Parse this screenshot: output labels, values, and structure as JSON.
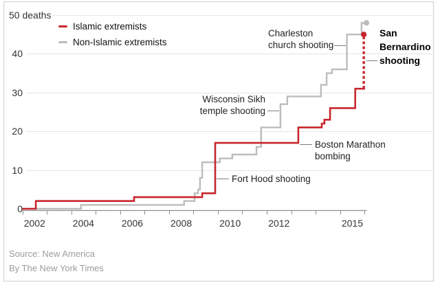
{
  "chart_data": {
    "type": "line",
    "subtype": "cumulative-step",
    "title": "",
    "y_axis": {
      "unit_label": "50 deaths",
      "ticks": [
        0,
        10,
        20,
        30,
        40
      ],
      "top_tick": 50,
      "range": [
        0,
        50
      ],
      "grid": true
    },
    "x_axis": {
      "labels": [
        "2002",
        "2004",
        "2006",
        "2008",
        "2010",
        "2012",
        "2015"
      ],
      "label_years": [
        2002,
        2004,
        2006,
        2008,
        2010,
        2012,
        2015
      ],
      "tick_years_start": 2002,
      "tick_count": 15,
      "range": [
        2002,
        2016.1
      ]
    },
    "series": [
      {
        "name": "Non-Islamic extremists",
        "color": "#bcbcbc",
        "points": [
          [
            2002.0,
            0
          ],
          [
            2004.4,
            1
          ],
          [
            2008.62,
            2
          ],
          [
            2009.05,
            4
          ],
          [
            2009.19,
            5
          ],
          [
            2009.27,
            8
          ],
          [
            2009.36,
            12
          ],
          [
            2010.08,
            13
          ],
          [
            2010.59,
            14
          ],
          [
            2011.58,
            16
          ],
          [
            2011.77,
            21
          ],
          [
            2012.56,
            27
          ],
          [
            2012.84,
            29
          ],
          [
            2014.22,
            32
          ],
          [
            2014.45,
            35
          ],
          [
            2014.67,
            36
          ],
          [
            2015.28,
            45
          ],
          [
            2015.88,
            48
          ]
        ],
        "solid_end_year": 2016.08,
        "end_dot": {
          "year": 2016.08,
          "value": 48
        }
      },
      {
        "name": "Islamic extremists",
        "color": "#c7262c",
        "points": [
          [
            2002.0,
            0
          ],
          [
            2002.55,
            2
          ],
          [
            2006.57,
            3
          ],
          [
            2009.36,
            4
          ],
          [
            2009.89,
            17
          ],
          [
            2013.29,
            21
          ],
          [
            2014.25,
            22
          ],
          [
            2014.36,
            23
          ],
          [
            2014.59,
            26
          ],
          [
            2015.62,
            31
          ]
        ],
        "solid_end_year": 2016.02,
        "dashed_rise": {
          "year": 2015.97,
          "from": 31,
          "to": 45
        },
        "end_dot": {
          "year": 2015.97,
          "value": 45
        }
      }
    ],
    "annotations": [
      {
        "id": "fort-hood",
        "lines": [
          "Fort Hood shooting"
        ],
        "connector": [
          315,
          260,
          333,
          260
        ]
      },
      {
        "id": "wisconsin",
        "lines": [
          "Wisconsin Sikh",
          "temple shooting"
        ],
        "connector": [
          389,
          161,
          406,
          161
        ]
      },
      {
        "id": "boston",
        "lines": [
          "Boston Marathon",
          "bombing"
        ],
        "connector": [
          436,
          210,
          454,
          210
        ]
      },
      {
        "id": "charleston",
        "lines": [
          "Charleston",
          "church shooting"
        ],
        "connector": [
          486,
          66,
          503,
          66
        ]
      },
      {
        "id": "san-bernardino",
        "lines": [
          "San",
          "Bernardino",
          "shooting"
        ],
        "connector": [
          533,
          88,
          549,
          88
        ],
        "bold": true
      }
    ],
    "legend_position": "top-left"
  },
  "legend": {
    "items": [
      {
        "label": "Islamic extremists",
        "color": "#c7262c"
      },
      {
        "label": "Non-Islamic extremists",
        "color": "#bcbcbc"
      }
    ]
  },
  "footer": {
    "source": "Source: New America",
    "byline": "By The New York Times"
  },
  "colors": {
    "islamic_red": "#c7262c",
    "non_islamic_gray": "#bcbcbc",
    "gridline": "#e4e4e4",
    "axis": "#8f8f8f",
    "connector": "#7d7d7d",
    "frame_border": "#d9d9d9"
  }
}
